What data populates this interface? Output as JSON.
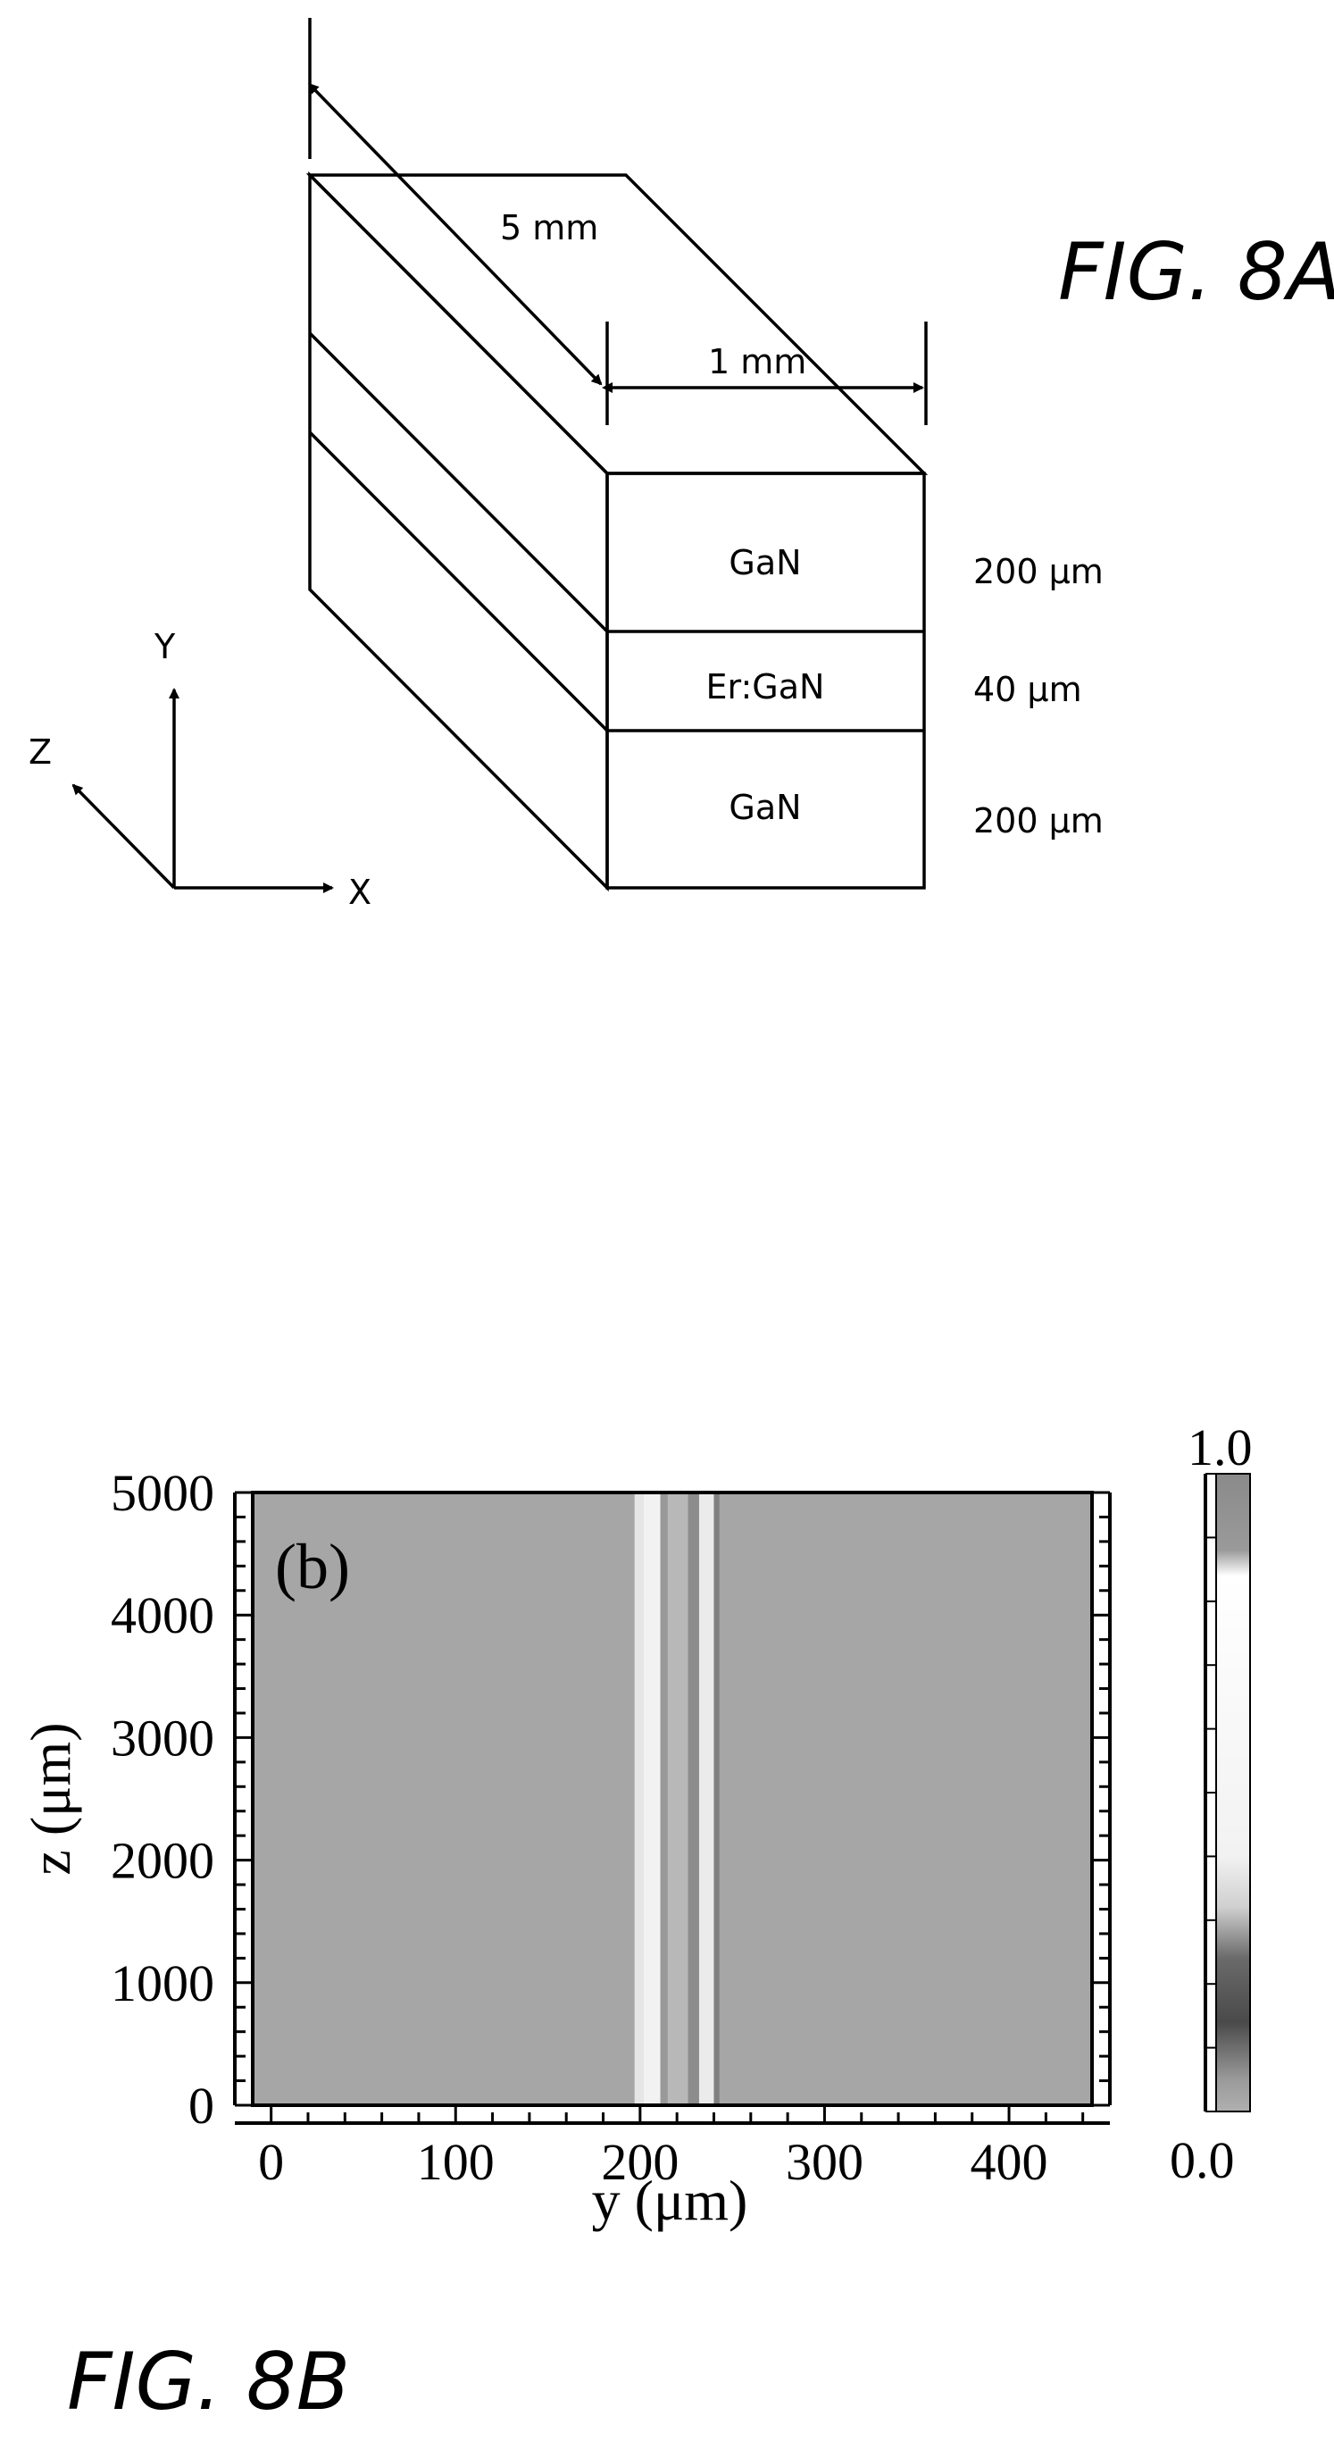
{
  "fig8a": {
    "figure_label": "FIG. 8A",
    "length_label": "5 mm",
    "width_label": "1 mm",
    "layers": [
      {
        "name": "GaN",
        "thickness": "200 μm"
      },
      {
        "name": "Er:GaN",
        "thickness": "40 μm"
      },
      {
        "name": "GaN",
        "thickness": "200 μm"
      }
    ],
    "axes": {
      "y": "Y",
      "z": "Z",
      "x": "X"
    }
  },
  "fig8b": {
    "figure_label": "FIG. 8B",
    "panel_label": "(b)",
    "colorbar": {
      "max_label": "1.0",
      "min_label": "0.0"
    }
  },
  "chart_data": {
    "type": "heatmap",
    "panel_label": "(b)",
    "xlabel": "y (μm)",
    "ylabel": "z (μm)",
    "xlim": [
      -10,
      445
    ],
    "ylim": [
      0,
      5000
    ],
    "xticks": [
      0,
      100,
      200,
      300,
      400
    ],
    "yticks": [
      0,
      1000,
      2000,
      3000,
      4000,
      5000
    ],
    "xtick_labels": [
      "0",
      "100",
      "200",
      "300",
      "400"
    ],
    "ytick_labels": [
      "0",
      "1000",
      "2000",
      "3000",
      "4000",
      "5000"
    ],
    "colorbar_range": [
      0.0,
      1.0
    ],
    "stripes": [
      {
        "y_from": 197,
        "y_to": 202,
        "intensity": 0.1
      },
      {
        "y_from": 202,
        "y_to": 211,
        "intensity": 0.05
      },
      {
        "y_from": 211,
        "y_to": 215,
        "intensity": 0.4
      },
      {
        "y_from": 215,
        "y_to": 226,
        "intensity": 0.28
      },
      {
        "y_from": 226,
        "y_to": 232,
        "intensity": 0.45
      },
      {
        "y_from": 232,
        "y_to": 240,
        "intensity": 0.08
      },
      {
        "y_from": 240,
        "y_to": 243,
        "intensity": 0.5
      }
    ],
    "background_intensity": 0.35
  }
}
